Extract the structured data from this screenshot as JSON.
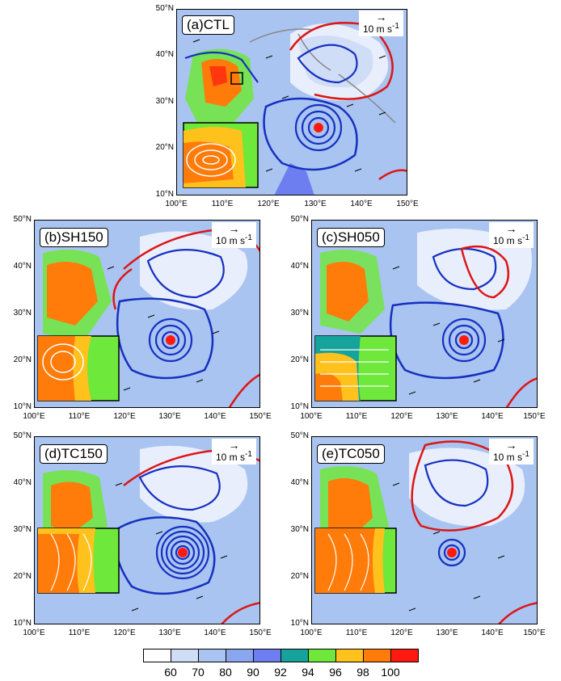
{
  "panels": [
    {
      "id": "a",
      "label": "(a)CTL",
      "ref_vector": "10 m s",
      "ref_exp": "-1",
      "lat_ticks": [
        "50°N",
        "40°N",
        "30°N",
        "20°N",
        "10°N"
      ],
      "lon_ticks": [
        "100°E",
        "110°E",
        "120°E",
        "130°E",
        "140°E",
        "150°E"
      ]
    },
    {
      "id": "b",
      "label": "(b)SH150",
      "ref_vector": "10 m s",
      "ref_exp": "-1",
      "lat_ticks": [
        "50°N",
        "40°N",
        "30°N",
        "20°N",
        "10°N"
      ],
      "lon_ticks": [
        "100°E",
        "110°E",
        "120°E",
        "130°E",
        "140°E",
        "150°E"
      ]
    },
    {
      "id": "c",
      "label": "(c)SH050",
      "ref_vector": "10 m s",
      "ref_exp": "-1",
      "lat_ticks": [
        "50°N",
        "40°N",
        "30°N",
        "20°N",
        "10°N"
      ],
      "lon_ticks": [
        "100°E",
        "110°E",
        "120°E",
        "130°E",
        "140°E",
        "150°E"
      ]
    },
    {
      "id": "d",
      "label": "(d)TC150",
      "ref_vector": "10 m s",
      "ref_exp": "-1",
      "lat_ticks": [
        "50°N",
        "40°N",
        "30°N",
        "20°N",
        "10°N"
      ],
      "lon_ticks": [
        "100°E",
        "110°E",
        "120°E",
        "130°E",
        "140°E",
        "150°E"
      ]
    },
    {
      "id": "e",
      "label": "(e)TC050",
      "ref_vector": "10 m s",
      "ref_exp": "-1",
      "lat_ticks": [
        "50°N",
        "40°N",
        "30°N",
        "20°N",
        "10°N"
      ],
      "lon_ticks": [
        "100°E",
        "110°E",
        "120°E",
        "130°E",
        "140°E",
        "150°E"
      ]
    }
  ],
  "legend": {
    "colors": [
      "#ffffff",
      "#d0ddf7",
      "#a9c4f0",
      "#8aa6ee",
      "#6d7ff0",
      "#16a39c",
      "#6ee83a",
      "#ffc21c",
      "#ff7c0a",
      "#ff1a10"
    ],
    "labels": [
      "60",
      "70",
      "80",
      "90",
      "92",
      "94",
      "96",
      "98",
      "100"
    ]
  }
}
